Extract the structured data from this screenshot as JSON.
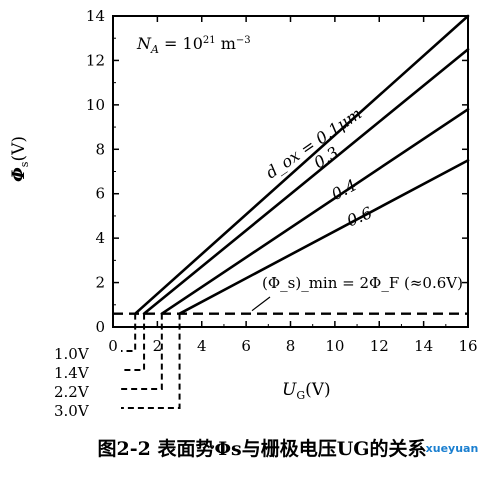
{
  "chart_data": {
    "type": "line",
    "annotation_param": "N_A = 10^21 m^-3",
    "xlabel": "U_G(V)",
    "ylabel": "Φ_s(V)",
    "xlim": [
      0,
      16
    ],
    "ylim": [
      0,
      14
    ],
    "x_ticks": [
      "0",
      "2",
      "4",
      "6",
      "8",
      "10",
      "12",
      "14",
      "16"
    ],
    "y_ticks": [
      "0",
      "2",
      "4",
      "6",
      "8",
      "10",
      "12",
      "14"
    ],
    "series": [
      {
        "name": "d_ox = 0.1μm",
        "x": [
          1.0,
          16
        ],
        "y": [
          0.6,
          14.0
        ]
      },
      {
        "name": "0.3",
        "x": [
          1.4,
          16
        ],
        "y": [
          0.6,
          12.5
        ]
      },
      {
        "name": "0.4",
        "x": [
          2.2,
          16
        ],
        "y": [
          0.6,
          9.8
        ]
      },
      {
        "name": "0.6",
        "x": [
          3.0,
          16
        ],
        "y": [
          0.6,
          7.5
        ]
      }
    ],
    "threshold": {
      "label": "(Φ_s)_min = 2Φ_F (≈0.6V)",
      "y": 0.6
    },
    "threshold_voltages": [
      "1.0V",
      "1.4V",
      "2.2V",
      "3.0V"
    ],
    "threshold_voltage_values": [
      1.0,
      1.4,
      2.2,
      3.0
    ],
    "caption": "图2-2 表面势Φs与栅极电压UG的关系",
    "watermark": "xueyuan"
  }
}
